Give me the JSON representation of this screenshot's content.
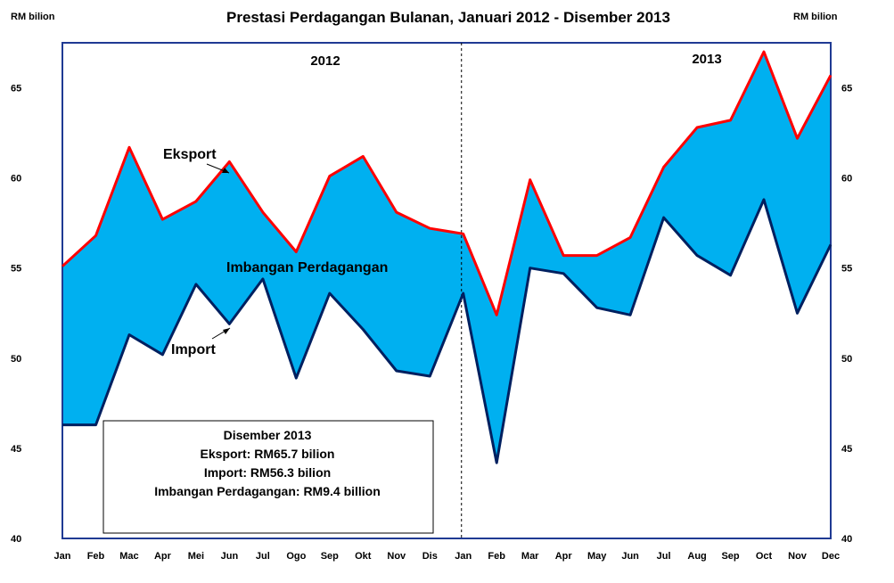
{
  "chart_data": {
    "type": "area",
    "title": "Prestasi Perdagangan Bulanan, Januari 2012 - Disember 2013",
    "ylabel_left": "RM bilion",
    "ylabel_right": "RM bilion",
    "ylim": [
      40,
      67.5
    ],
    "yticks": [
      40,
      45,
      50,
      55,
      60,
      65
    ],
    "categories": [
      "Jan",
      "Feb",
      "Mac",
      "Apr",
      "Mei",
      "Jun",
      "Jul",
      "Ogo",
      "Sep",
      "Okt",
      "Nov",
      "Dis",
      "Jan",
      "Feb",
      "Mar",
      "Apr",
      "May",
      "Jun",
      "Jul",
      "Aug",
      "Sep",
      "Oct",
      "Nov",
      "Dec"
    ],
    "year_labels": [
      "2012",
      "2013"
    ],
    "series": [
      {
        "name": "Eksport",
        "color": "#ff0000",
        "values": [
          55.1,
          56.8,
          61.7,
          57.7,
          58.7,
          60.9,
          58.1,
          55.9,
          60.1,
          61.2,
          58.1,
          57.2,
          56.9,
          52.4,
          59.9,
          55.7,
          55.7,
          56.7,
          60.6,
          62.8,
          63.2,
          67.0,
          62.2,
          65.7
        ]
      },
      {
        "name": "Import",
        "color": "#002060",
        "values": [
          46.3,
          46.3,
          51.3,
          50.2,
          54.1,
          51.9,
          54.4,
          48.9,
          53.6,
          51.6,
          49.3,
          49.0,
          53.6,
          44.2,
          55.0,
          54.7,
          52.8,
          52.4,
          57.8,
          55.7,
          54.6,
          58.8,
          52.5,
          56.3
        ]
      }
    ],
    "fill_color": "#00b0f0",
    "annotations": {
      "eksport": "Eksport",
      "import": "Import",
      "imbangan": "Imbangan  Perdagangan"
    },
    "summary_box": {
      "title": "Disember 2013",
      "line1": "Eksport:  RM65.7 bilion",
      "line2": "Import: RM56.3 bilion",
      "line3": "Imbangan  Perdagangan:  RM9.4 billion"
    }
  }
}
